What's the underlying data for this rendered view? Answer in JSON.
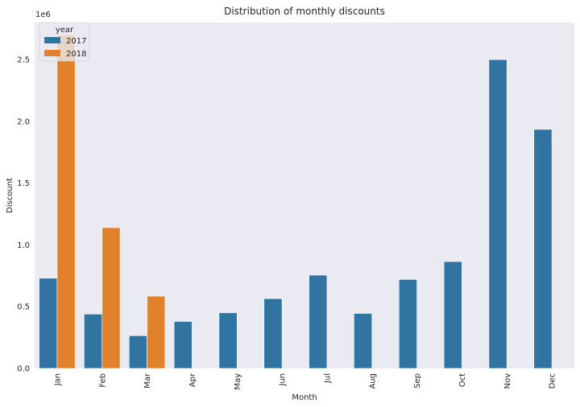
{
  "chart_data": {
    "type": "bar",
    "title": "Distribution of monthly discounts",
    "xlabel": "Month",
    "ylabel": "Discount",
    "y_offset_label": "1e6",
    "categories": [
      "Jan",
      "Feb",
      "Mar",
      "Apr",
      "May",
      "Jun",
      "Jul",
      "Aug",
      "Sep",
      "Oct",
      "Nov",
      "Dec"
    ],
    "series": [
      {
        "name": "2017",
        "color": "#3274a1",
        "values": [
          730000,
          440000,
          265000,
          380000,
          450000,
          565000,
          755000,
          445000,
          720000,
          865000,
          2500000,
          1935000
        ]
      },
      {
        "name": "2018",
        "color": "#e1812c",
        "values": [
          2700000,
          1140000,
          585000,
          null,
          null,
          null,
          null,
          null,
          null,
          null,
          null,
          null
        ]
      }
    ],
    "ylim": [
      0,
      2800000
    ],
    "yticks": [
      0,
      500000,
      1000000,
      1500000,
      2000000,
      2500000
    ],
    "ytick_labels": [
      "0.0",
      "0.5",
      "1.0",
      "1.5",
      "2.0",
      "2.5"
    ],
    "legend": {
      "title": "year",
      "placement": "top-left"
    },
    "grid": false,
    "background": "#eaeaf2"
  }
}
